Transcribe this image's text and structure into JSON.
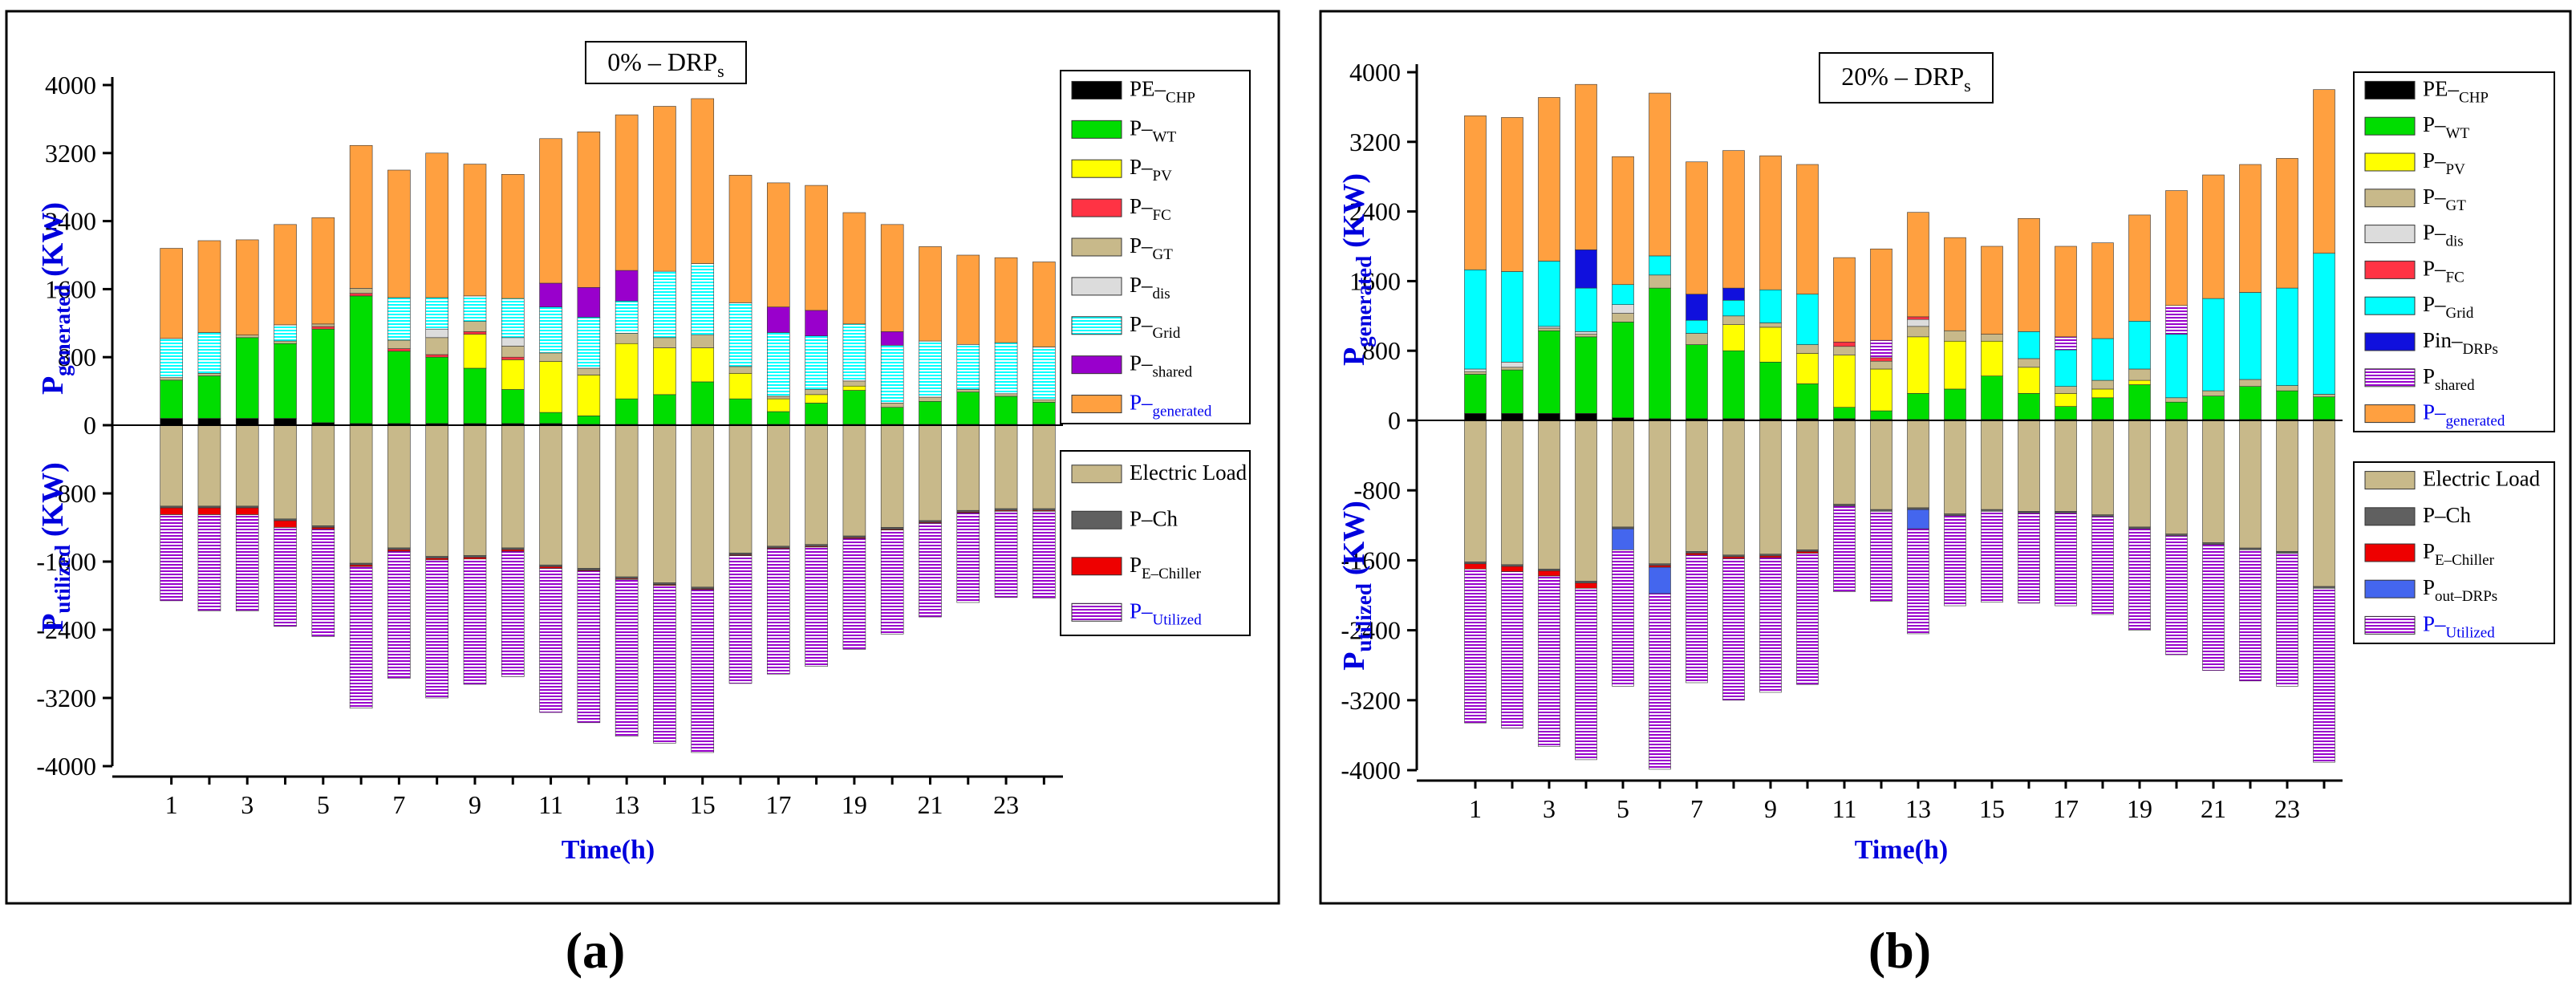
{
  "colors": {
    "PE_CHP": "#000000",
    "P_WT": "#00dd00",
    "P_PV": "#ffff00",
    "P_FC": "#ff3344",
    "P_GT": "#c8b98a",
    "P_dis": "#dcdcdc",
    "P_Grid": "#00ffff",
    "Pin_DRPs": "#1010dd",
    "P_shared": "#9900cc",
    "P_generated": "#ffa040",
    "Electric_Load": "#c8b98a",
    "P_Ch": "#606060",
    "P_E_Chiller": "#ee0000",
    "Pout_DRPs": "#4466ee",
    "P_Utilized": "#9900cc",
    "axis_label": "#0000dd"
  },
  "captions": [
    "(a)",
    "(b)"
  ],
  "chart_data": [
    {
      "type": "bar",
      "stacked": true,
      "title": "0% – DRP",
      "title_sub": "s",
      "xlabel": "Time(h)",
      "ylabel_top": "P",
      "ylabel_top_sub": "generated",
      "ylabel_top_unit": "(KW)",
      "ylabel_bottom": "P",
      "ylabel_bottom_sub": "utilized",
      "ylabel_bottom_unit": "(KW)",
      "ylim": [
        -4000,
        4000
      ],
      "yticks": [
        "4000",
        "3200",
        "2400",
        "1600",
        "800",
        "0",
        "-800",
        "-1600",
        "-2400",
        "-3200",
        "-4000"
      ],
      "xticks": [
        "1",
        "3",
        "5",
        "7",
        "9",
        "11",
        "13",
        "15",
        "17",
        "19",
        "21",
        "23"
      ],
      "hours": [
        1,
        2,
        3,
        4,
        5,
        6,
        7,
        8,
        9,
        10,
        11,
        12,
        13,
        14,
        15,
        16,
        17,
        18,
        19,
        20,
        21,
        22,
        23,
        24
      ],
      "top_legend": [
        {
          "key": "PE_CHP",
          "label": "PE–",
          "sub": "CHP",
          "hatch": false
        },
        {
          "key": "P_WT",
          "label": "P–",
          "sub": "WT",
          "hatch": false
        },
        {
          "key": "P_PV",
          "label": "P–",
          "sub": "PV",
          "hatch": false
        },
        {
          "key": "P_FC",
          "label": "P–",
          "sub": "FC",
          "hatch": false
        },
        {
          "key": "P_GT",
          "label": "P–",
          "sub": "GT",
          "hatch": false
        },
        {
          "key": "P_dis",
          "label": "P–",
          "sub": "dis",
          "hatch": false
        },
        {
          "key": "P_Grid",
          "label": "P–",
          "sub": "Grid",
          "hatch": true
        },
        {
          "key": "P_shared",
          "label": "P–",
          "sub": "shared",
          "hatch": false
        },
        {
          "key": "P_generated",
          "label": "P–",
          "sub": "generated",
          "hatch": false,
          "blue": true
        }
      ],
      "bottom_legend": [
        {
          "key": "Electric_Load",
          "label": "Electric Load",
          "sub": "",
          "hatch": false
        },
        {
          "key": "P_Ch",
          "label": "P–Ch",
          "sub": "",
          "hatch": false
        },
        {
          "key": "P_E_Chiller",
          "label": "P",
          "sub": "E–Chiller",
          "hatch": false
        },
        {
          "key": "P_Utilized",
          "label": "P–",
          "sub": "Utilized",
          "hatch": false,
          "blue": true
        }
      ],
      "top_series": [
        {
          "key": "PE_CHP",
          "values": [
            80,
            80,
            80,
            80,
            30,
            20,
            20,
            20,
            20,
            20,
            20,
            10,
            10,
            10,
            10,
            10,
            10,
            10,
            10,
            10,
            10,
            10,
            10,
            10
          ]
        },
        {
          "key": "P_WT",
          "values": [
            450,
            500,
            950,
            880,
            1100,
            1500,
            850,
            780,
            650,
            400,
            130,
            100,
            300,
            350,
            500,
            300,
            150,
            250,
            400,
            200,
            270,
            380,
            330,
            260
          ]
        },
        {
          "key": "P_PV",
          "values": [
            0,
            0,
            0,
            0,
            0,
            0,
            0,
            0,
            400,
            350,
            600,
            480,
            650,
            550,
            400,
            300,
            150,
            100,
            50,
            0,
            0,
            0,
            0,
            0
          ]
        },
        {
          "key": "P_FC",
          "values": [
            0,
            0,
            0,
            0,
            30,
            30,
            30,
            30,
            30,
            30,
            0,
            0,
            0,
            0,
            0,
            0,
            0,
            0,
            0,
            0,
            0,
            0,
            0,
            0
          ]
        },
        {
          "key": "P_GT",
          "values": [
            30,
            30,
            30,
            30,
            30,
            60,
            100,
            200,
            120,
            130,
            100,
            80,
            120,
            120,
            150,
            80,
            30,
            60,
            60,
            50,
            50,
            30,
            30,
            30
          ]
        },
        {
          "key": "P_dis",
          "values": [
            0,
            0,
            0,
            0,
            0,
            0,
            0,
            100,
            0,
            100,
            0,
            0,
            0,
            0,
            0,
            0,
            0,
            0,
            0,
            0,
            0,
            0,
            0,
            0
          ]
        },
        {
          "key": "P_Grid",
          "values": [
            460,
            480,
            0,
            190,
            0,
            0,
            500,
            370,
            300,
            460,
            540,
            600,
            380,
            780,
            840,
            750,
            750,
            630,
            670,
            680,
            660,
            530,
            600,
            620
          ]
        },
        {
          "key": "P_shared",
          "values": [
            0,
            0,
            0,
            0,
            0,
            0,
            0,
            0,
            0,
            0,
            280,
            350,
            360,
            0,
            0,
            0,
            300,
            300,
            0,
            160,
            0,
            0,
            0,
            0
          ]
        },
        {
          "key": "P_generated",
          "values": [
            1060,
            1080,
            1120,
            1180,
            1250,
            1680,
            1500,
            1700,
            1550,
            1460,
            1700,
            1830,
            1830,
            1940,
            1940,
            1500,
            1460,
            1470,
            1310,
            1260,
            1110,
            1050,
            1000,
            1000
          ]
        }
      ],
      "bottom_series": [
        {
          "key": "Electric_Load",
          "values": [
            950,
            950,
            950,
            1100,
            1180,
            1620,
            1440,
            1540,
            1530,
            1440,
            1640,
            1680,
            1780,
            1850,
            1900,
            1500,
            1420,
            1400,
            1300,
            1200,
            1120,
            1000,
            980,
            980
          ]
        },
        {
          "key": "P_Ch",
          "values": [
            20,
            20,
            20,
            20,
            20,
            20,
            20,
            20,
            20,
            20,
            20,
            20,
            20,
            20,
            20,
            20,
            20,
            20,
            20,
            20,
            20,
            20,
            20,
            20
          ]
        },
        {
          "key": "P_E_Chiller",
          "values": [
            80,
            80,
            80,
            80,
            20,
            20,
            20,
            20,
            20,
            20,
            20,
            10,
            10,
            10,
            10,
            10,
            10,
            10,
            10,
            10,
            10,
            10,
            10,
            10
          ]
        },
        {
          "key": "P_Utilized",
          "values": [
            1010,
            1130,
            1130,
            1160,
            1260,
            1660,
            1490,
            1620,
            1470,
            1470,
            1690,
            1780,
            1840,
            1850,
            1910,
            1500,
            1470,
            1400,
            1300,
            1220,
            1100,
            1050,
            1010,
            1020
          ]
        }
      ]
    },
    {
      "type": "bar",
      "stacked": true,
      "title": "20% – DRP",
      "title_sub": "s",
      "xlabel": "Time(h)",
      "ylabel_top": "P",
      "ylabel_top_sub": "generated",
      "ylabel_top_unit": "(KW)",
      "ylabel_bottom": "P",
      "ylabel_bottom_sub": "utilized",
      "ylabel_bottom_unit": "(KW)",
      "ylim": [
        -4000,
        4000
      ],
      "yticks": [
        "4000",
        "3200",
        "2400",
        "1600",
        "800",
        "0",
        "-800",
        "-1600",
        "-2400",
        "-3200",
        "-4000"
      ],
      "xticks": [
        "1",
        "3",
        "5",
        "7",
        "9",
        "11",
        "13",
        "15",
        "17",
        "19",
        "21",
        "23"
      ],
      "hours": [
        1,
        2,
        3,
        4,
        5,
        6,
        7,
        8,
        9,
        10,
        11,
        12,
        13,
        14,
        15,
        16,
        17,
        18,
        19,
        20,
        21,
        22,
        23,
        24
      ],
      "top_legend": [
        {
          "key": "PE_CHP",
          "label": "PE–",
          "sub": "CHP",
          "hatch": false
        },
        {
          "key": "P_WT",
          "label": "P–",
          "sub": "WT",
          "hatch": false
        },
        {
          "key": "P_PV",
          "label": "P–",
          "sub": "PV",
          "hatch": false
        },
        {
          "key": "P_GT",
          "label": "P–",
          "sub": "GT",
          "hatch": false
        },
        {
          "key": "P_dis",
          "label": "P–",
          "sub": "dis",
          "hatch": false
        },
        {
          "key": "P_FC",
          "label": "P–",
          "sub": "FC",
          "hatch": false
        },
        {
          "key": "P_Grid",
          "label": "P–",
          "sub": "Grid",
          "hatch": false
        },
        {
          "key": "Pin_DRPs",
          "label": "Pin–",
          "sub": "DRPs",
          "hatch": false
        },
        {
          "key": "P_shared",
          "label": "P",
          "sub": "shared",
          "hatch": true
        },
        {
          "key": "P_generated",
          "label": "P–",
          "sub": "generated",
          "hatch": false,
          "blue": true
        }
      ],
      "bottom_legend": [
        {
          "key": "Electric_Load",
          "label": "Electric Load",
          "sub": "",
          "hatch": false
        },
        {
          "key": "P_Ch",
          "label": "P–Ch",
          "sub": "",
          "hatch": false
        },
        {
          "key": "P_E_Chiller",
          "label": "P",
          "sub": "E–Chiller",
          "hatch": false
        },
        {
          "key": "Pout_DRPs",
          "label": "P",
          "sub": "out–DRPs",
          "hatch": false
        },
        {
          "key": "P_Utilized",
          "label": "P–",
          "sub": "Utilized",
          "hatch": true,
          "blue": true
        }
      ],
      "top_series": [
        {
          "key": "PE_CHP",
          "values": [
            80,
            80,
            80,
            80,
            30,
            20,
            20,
            20,
            20,
            20,
            20,
            10,
            10,
            10,
            10,
            10,
            10,
            10,
            10,
            10,
            10,
            10,
            10,
            10
          ]
        },
        {
          "key": "P_WT",
          "values": [
            450,
            500,
            950,
            880,
            1100,
            1500,
            850,
            780,
            650,
            400,
            130,
            100,
            300,
            350,
            500,
            300,
            150,
            250,
            400,
            200,
            270,
            380,
            330,
            260
          ]
        },
        {
          "key": "P_PV",
          "values": [
            0,
            0,
            0,
            0,
            0,
            0,
            0,
            300,
            400,
            350,
            600,
            480,
            650,
            550,
            400,
            300,
            150,
            100,
            50,
            0,
            0,
            0,
            0,
            0
          ]
        },
        {
          "key": "P_GT",
          "values": [
            30,
            30,
            30,
            30,
            100,
            150,
            130,
            100,
            50,
            100,
            100,
            90,
            120,
            120,
            80,
            100,
            80,
            100,
            130,
            50,
            60,
            80,
            60,
            30
          ]
        },
        {
          "key": "P_dis",
          "values": [
            30,
            60,
            20,
            30,
            100,
            0,
            0,
            0,
            0,
            0,
            0,
            0,
            80,
            0,
            0,
            0,
            0,
            0,
            0,
            0,
            0,
            0,
            0,
            0
          ]
        },
        {
          "key": "P_FC",
          "values": [
            0,
            0,
            0,
            0,
            0,
            0,
            0,
            0,
            0,
            0,
            50,
            40,
            30,
            0,
            0,
            0,
            0,
            0,
            0,
            0,
            0,
            0,
            0,
            0
          ]
        },
        {
          "key": "P_Grid",
          "values": [
            1140,
            1040,
            750,
            500,
            230,
            220,
            150,
            180,
            380,
            580,
            0,
            0,
            0,
            0,
            0,
            310,
            420,
            480,
            550,
            730,
            1060,
            1000,
            1120,
            1620
          ]
        },
        {
          "key": "Pin_DRPs",
          "values": [
            0,
            0,
            0,
            440,
            0,
            0,
            300,
            140,
            0,
            0,
            0,
            0,
            0,
            0,
            0,
            0,
            0,
            0,
            0,
            0,
            0,
            0,
            0,
            0
          ]
        },
        {
          "key": "P_shared",
          "values": [
            0,
            0,
            0,
            0,
            0,
            0,
            0,
            0,
            0,
            0,
            0,
            200,
            0,
            0,
            0,
            0,
            150,
            0,
            0,
            330,
            0,
            0,
            0,
            0
          ]
        },
        {
          "key": "P_generated",
          "values": [
            1770,
            1770,
            1880,
            1900,
            1470,
            1870,
            1520,
            1580,
            1540,
            1490,
            970,
            1050,
            1200,
            1070,
            1010,
            1300,
            1040,
            1100,
            1220,
            1320,
            1420,
            1470,
            1490,
            1880
          ]
        }
      ],
      "bottom_series": [
        {
          "key": "Electric_Load",
          "values": [
            1620,
            1650,
            1700,
            1840,
            1220,
            1640,
            1500,
            1540,
            1530,
            1480,
            960,
            1020,
            1000,
            1070,
            1020,
            1040,
            1040,
            1080,
            1220,
            1300,
            1400,
            1460,
            1500,
            1900
          ]
        },
        {
          "key": "P_Ch",
          "values": [
            20,
            20,
            20,
            20,
            20,
            20,
            20,
            20,
            20,
            20,
            20,
            20,
            20,
            20,
            20,
            20,
            20,
            20,
            20,
            20,
            20,
            20,
            20,
            20
          ]
        },
        {
          "key": "P_E_Chiller",
          "values": [
            60,
            60,
            60,
            60,
            0,
            20,
            20,
            20,
            20,
            20,
            0,
            0,
            0,
            0,
            0,
            0,
            0,
            0,
            0,
            0,
            0,
            0,
            0,
            0
          ]
        },
        {
          "key": "Pout_DRPs",
          "values": [
            0,
            0,
            0,
            0,
            240,
            300,
            0,
            0,
            0,
            0,
            0,
            0,
            220,
            0,
            0,
            0,
            0,
            0,
            0,
            0,
            0,
            0,
            0,
            0
          ]
        },
        {
          "key": "P_Utilized",
          "values": [
            1760,
            1790,
            1950,
            1960,
            1560,
            2010,
            1460,
            1620,
            1540,
            1500,
            980,
            1030,
            1200,
            1030,
            1040,
            1030,
            1060,
            1120,
            1160,
            1360,
            1440,
            1500,
            1520,
            1990
          ]
        }
      ]
    }
  ]
}
